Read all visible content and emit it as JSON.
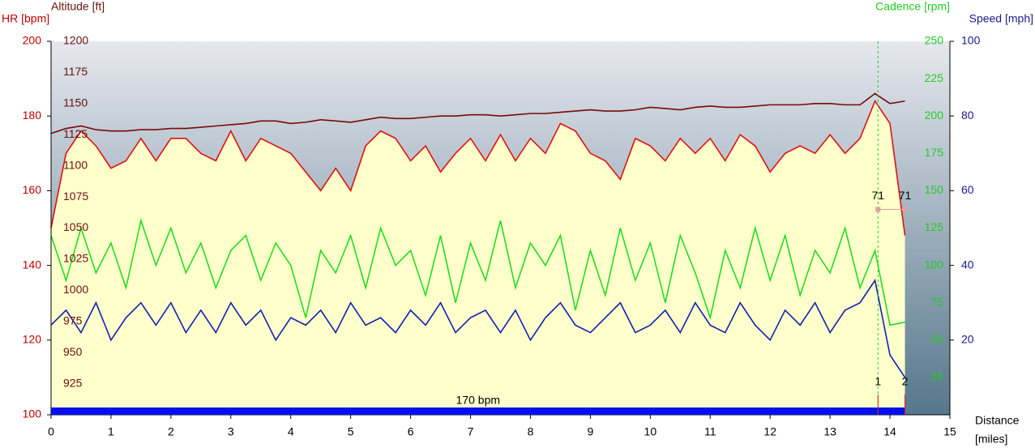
{
  "chart_data": {
    "type": "line",
    "x_label": "Distance",
    "x_unit": "[miles]",
    "x": [
      0,
      0.25,
      0.5,
      0.75,
      1,
      1.25,
      1.5,
      1.75,
      2,
      2.25,
      2.5,
      2.75,
      3,
      3.25,
      3.5,
      3.75,
      4,
      4.25,
      4.5,
      4.75,
      5,
      5.25,
      5.5,
      5.75,
      6,
      6.25,
      6.5,
      6.75,
      7,
      7.25,
      7.5,
      7.75,
      8,
      8.25,
      8.5,
      8.75,
      9,
      9.25,
      9.5,
      9.75,
      10,
      10.25,
      10.5,
      10.75,
      11,
      11.25,
      11.5,
      11.75,
      12,
      12.25,
      12.5,
      12.75,
      13,
      13.25,
      13.5,
      13.75,
      14,
      14.25
    ],
    "xlim": [
      0,
      15
    ],
    "xticks": [
      0,
      1,
      2,
      3,
      4,
      5,
      6,
      7,
      8,
      9,
      10,
      11,
      12,
      13,
      14,
      15
    ],
    "axes": {
      "hr": {
        "label": "HR [bpm]",
        "color": "#c00000",
        "lim": [
          100,
          200
        ],
        "ticks": [
          100,
          120,
          140,
          160,
          180,
          200
        ]
      },
      "alt": {
        "label": "Altitude [ft]",
        "color": "#6b1010",
        "lim": [
          900,
          1200
        ],
        "ticks": [
          925,
          950,
          975,
          1000,
          1025,
          1050,
          1075,
          1100,
          1125,
          1150,
          1175,
          1200
        ]
      },
      "cad": {
        "label": "Cadence [rpm]",
        "color": "#22cc22",
        "lim": [
          0,
          250
        ],
        "ticks": [
          25,
          50,
          75,
          100,
          125,
          150,
          175,
          200,
          225,
          250
        ]
      },
      "spd": {
        "label": "Speed [mph]",
        "color": "#1a1a90",
        "lim": [
          0,
          100
        ],
        "ticks": [
          20,
          40,
          60,
          80,
          100
        ]
      }
    },
    "series": [
      {
        "name": "HR",
        "axis": "hr",
        "color": "#e01010",
        "fill": "#ffffcc",
        "values": [
          150,
          170,
          176,
          172,
          166,
          168,
          174,
          168,
          174,
          174,
          170,
          168,
          176,
          168,
          174,
          172,
          170,
          165,
          160,
          166,
          160,
          172,
          176,
          174,
          168,
          172,
          165,
          170,
          174,
          168,
          175,
          168,
          174,
          170,
          178,
          176,
          170,
          168,
          163,
          174,
          172,
          168,
          174,
          170,
          174,
          168,
          175,
          172,
          165,
          170,
          172,
          170,
          175,
          170,
          174,
          184,
          178,
          148
        ]
      },
      {
        "name": "Altitude",
        "axis": "alt",
        "color": "#7a0a0a",
        "values": [
          1126,
          1130,
          1132,
          1129,
          1128,
          1128,
          1129,
          1129,
          1130,
          1130,
          1131,
          1132,
          1133,
          1134,
          1136,
          1136,
          1134,
          1135,
          1137,
          1136,
          1135,
          1137,
          1139,
          1138,
          1138,
          1139,
          1140,
          1140,
          1141,
          1141,
          1140,
          1141,
          1142,
          1142,
          1143,
          1144,
          1145,
          1144,
          1144,
          1145,
          1147,
          1146,
          1145,
          1147,
          1148,
          1147,
          1147,
          1148,
          1149,
          1149,
          1149,
          1150,
          1150,
          1149,
          1149,
          1158,
          1150,
          1152
        ]
      },
      {
        "name": "Cadence",
        "axis": "cad",
        "color": "#22dd22",
        "values": [
          120,
          90,
          125,
          95,
          115,
          85,
          130,
          100,
          125,
          95,
          115,
          85,
          110,
          120,
          90,
          115,
          100,
          65,
          110,
          95,
          120,
          85,
          125,
          100,
          110,
          80,
          120,
          75,
          115,
          90,
          130,
          85,
          115,
          100,
          120,
          70,
          110,
          80,
          125,
          90,
          115,
          75,
          120,
          95,
          65,
          110,
          85,
          125,
          90,
          120,
          80,
          110,
          95,
          125,
          85,
          110,
          60,
          62
        ]
      },
      {
        "name": "Speed",
        "axis": "spd",
        "color": "#1020b0",
        "values": [
          24,
          28,
          22,
          30,
          20,
          26,
          30,
          24,
          30,
          22,
          28,
          22,
          30,
          24,
          28,
          20,
          26,
          24,
          28,
          22,
          30,
          24,
          26,
          22,
          28,
          24,
          30,
          22,
          26,
          28,
          22,
          28,
          20,
          26,
          30,
          24,
          22,
          26,
          30,
          22,
          24,
          28,
          22,
          30,
          24,
          22,
          30,
          24,
          20,
          28,
          24,
          30,
          22,
          28,
          30,
          36,
          16,
          10
        ]
      }
    ],
    "zone_bar": {
      "label": "170 bpm",
      "start": 0,
      "end": 14.25
    },
    "laps": [
      {
        "name": "1",
        "x": 13.8,
        "value": 71
      },
      {
        "name": "2",
        "x": 14.25,
        "value": 71
      }
    ]
  }
}
